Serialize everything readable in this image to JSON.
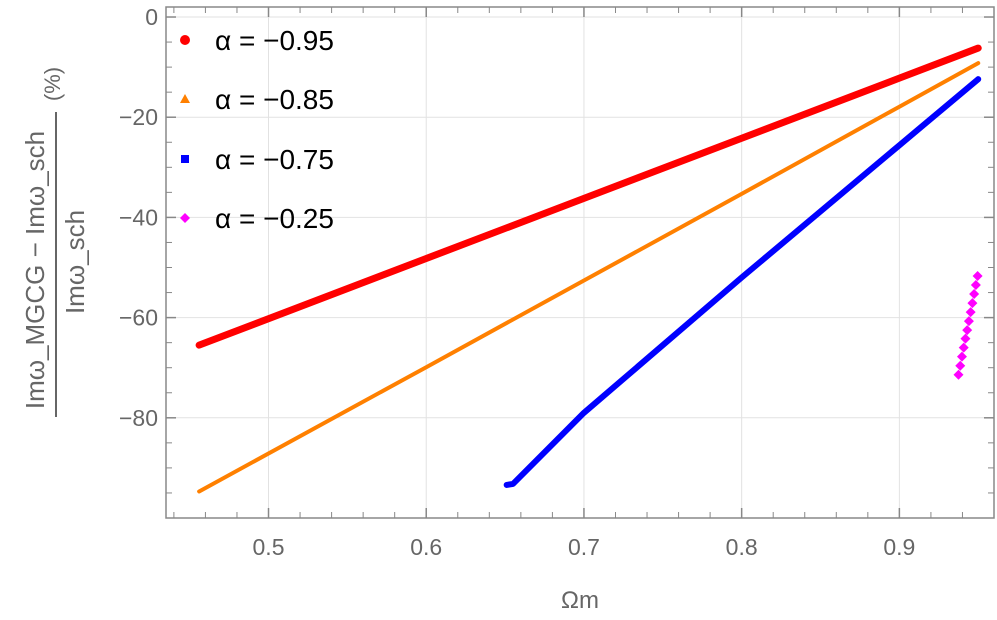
{
  "chart_data": {
    "type": "scatter",
    "title": "",
    "xlabel": "Ωm",
    "ylabel": {
      "numerator": "Imω_MGCG − Imω_sch",
      "denominator": "Imω_sch",
      "unit": "(%)"
    },
    "xlim": [
      0.435,
      0.96
    ],
    "ylim": [
      -100,
      2
    ],
    "xticks": [
      "0.5",
      "0.6",
      "0.7",
      "0.8",
      "0.9"
    ],
    "xtick_values": [
      0.5,
      0.6,
      0.7,
      0.8,
      0.9
    ],
    "yticks": [
      "0",
      "−20",
      "−40",
      "−60",
      "−80"
    ],
    "ytick_values": [
      0,
      -20,
      -40,
      -60,
      -80
    ],
    "grid": true,
    "legend_position": "top-left",
    "series": [
      {
        "name": "α = −0.95",
        "color": "#ff0000",
        "marker": "circle",
        "x": [
          0.456,
          0.6,
          0.7,
          0.8,
          0.9,
          0.95
        ],
        "y": [
          -65.5,
          -48.2,
          -36.2,
          -24.2,
          -12.2,
          -6.2
        ]
      },
      {
        "name": "α = −0.85",
        "color": "#ff8000",
        "marker": "triangle",
        "x": [
          0.456,
          0.6,
          0.7,
          0.8,
          0.9,
          0.95
        ],
        "y": [
          -94.7,
          -69.9,
          -52.6,
          -35.3,
          -17.9,
          -9.2
        ]
      },
      {
        "name": "α = −0.75",
        "color": "#0000ff",
        "marker": "square",
        "x": [
          0.651,
          0.655,
          0.7,
          0.8,
          0.9,
          0.95
        ],
        "y": [
          -93.4,
          -93.2,
          -79.0,
          -52.0,
          -25.6,
          -12.4
        ]
      },
      {
        "name": "α = −0.25",
        "color": "#ff00ff",
        "marker": "diamond",
        "x": [
          0.9375,
          0.9386,
          0.9397,
          0.9408,
          0.9419,
          0.943,
          0.9441,
          0.9452,
          0.9463,
          0.9474,
          0.9485,
          0.9496
        ],
        "y": [
          -71.4,
          -69.6,
          -67.8,
          -66.0,
          -64.2,
          -62.5,
          -60.7,
          -58.9,
          -57.1,
          -55.3,
          -53.5,
          -51.7
        ]
      }
    ]
  }
}
